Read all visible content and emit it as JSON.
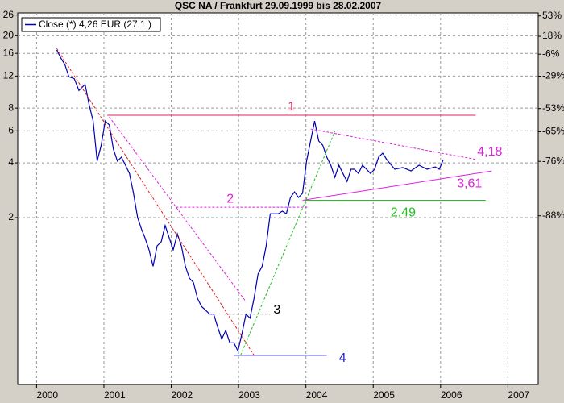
{
  "chart_data": {
    "type": "line",
    "title": "QSC NA / Frankfurt 29.09.1999  bis 28.02.2007",
    "log_scale": true,
    "y2_log": true,
    "grid": true,
    "legend": "top-left",
    "xlim": [
      1999.72,
      2007.45
    ],
    "xticks": [
      2000,
      2001,
      2002,
      2003,
      2004,
      2005,
      2006,
      2007
    ],
    "ylim": [
      0.242,
      26.7
    ],
    "yticks": [
      2,
      4,
      6,
      8,
      12,
      16,
      20,
      26
    ],
    "y2lim": [
      -98.6,
      59
    ],
    "y2ticks": [
      {
        "value": 53,
        "label": "53%"
      },
      {
        "value": 18,
        "label": "18%"
      },
      {
        "value": -6,
        "label": "-6%"
      },
      {
        "value": -29,
        "label": "-29%"
      },
      {
        "value": -53,
        "label": "-53%"
      },
      {
        "value": -65,
        "label": "-65%"
      },
      {
        "value": -76,
        "label": "-76%"
      },
      {
        "value": -88,
        "label": "-88%"
      }
    ],
    "x": [
      2000.3,
      2000.36,
      2000.42,
      2000.48,
      2000.56,
      2000.63,
      2000.72,
      2000.78,
      2000.84,
      2000.9,
      2000.96,
      2001.02,
      2001.08,
      2001.14,
      2001.2,
      2001.26,
      2001.32,
      2001.38,
      2001.44,
      2001.5,
      2001.56,
      2001.61,
      2001.67,
      2001.73,
      2001.79,
      2001.85,
      2001.91,
      2001.97,
      2002.03,
      2002.09,
      2002.15,
      2002.21,
      2002.27,
      2002.33,
      2002.39,
      2002.45,
      2002.51,
      2002.57,
      2002.63,
      2002.69,
      2002.75,
      2002.81,
      2002.87,
      2002.93,
      2002.99,
      2003.05,
      2003.11,
      2003.17,
      2003.23,
      2003.29,
      2003.35,
      2003.41,
      2003.47,
      2003.53,
      2003.59,
      2003.65,
      2003.71,
      2003.77,
      2003.83,
      2003.89,
      2003.95,
      2004.01,
      2004.07,
      2004.13,
      2004.19,
      2004.25,
      2004.31,
      2004.37,
      2004.43,
      2004.49,
      2004.55,
      2004.61,
      2004.67,
      2004.72,
      2004.78,
      2004.84,
      2004.9,
      2004.96,
      2005.02,
      2005.08,
      2005.14,
      2005.2,
      2005.32,
      2005.44,
      2005.56,
      2005.68,
      2005.8,
      2005.92,
      2005.98,
      2006.04
    ],
    "series": [
      {
        "name": "Close (*) 4,26 EUR (27.1.)",
        "color": "#0000b0",
        "values": [
          16.7,
          15.1,
          13.9,
          11.9,
          11.6,
          10.0,
          10.8,
          8.35,
          6.8,
          4.09,
          5.0,
          6.8,
          6.46,
          4.76,
          4.09,
          4.3,
          3.88,
          3.5,
          2.72,
          2.0,
          1.72,
          1.55,
          1.33,
          1.08,
          1.4,
          1.47,
          1.81,
          1.55,
          1.33,
          1.63,
          1.4,
          1.08,
          0.93,
          0.88,
          0.72,
          0.65,
          0.62,
          0.59,
          0.59,
          0.5,
          0.43,
          0.48,
          0.41,
          0.41,
          0.37,
          0.46,
          0.59,
          0.56,
          0.72,
          0.98,
          1.08,
          1.4,
          2.1,
          2.1,
          2.1,
          2.17,
          2.1,
          2.58,
          2.77,
          2.58,
          2.72,
          4.09,
          5.27,
          6.8,
          5.27,
          5.0,
          4.3,
          3.88,
          3.33,
          3.88,
          3.5,
          3.16,
          3.69,
          3.69,
          3.5,
          3.88,
          3.69,
          3.5,
          3.69,
          4.3,
          4.52,
          4.17,
          3.69,
          3.77,
          3.61,
          3.88,
          3.69,
          3.8,
          3.69,
          4.17
        ]
      }
    ],
    "lines": [
      {
        "label": "1",
        "x1": 2001.05,
        "x2": 2006.52,
        "y1": 7.31,
        "y2": 7.31,
        "color": "#e0205a",
        "dashed": false
      },
      {
        "label": "2",
        "x1": 2002.07,
        "x2": 2004.04,
        "y1": 2.28,
        "y2": 2.28,
        "color": "#e020e0",
        "dashed": true
      },
      {
        "label": "3",
        "x1": 2002.79,
        "x2": 2003.47,
        "y1": 0.59,
        "y2": 0.59,
        "color": "#000000",
        "dashed": true
      },
      {
        "label": "4",
        "x1": 2002.93,
        "x2": 2004.31,
        "y1": 0.35,
        "y2": 0.35,
        "color": "#2020c0",
        "dashed": false
      },
      {
        "label": "2,49",
        "x1": 2003.98,
        "x2": 2006.67,
        "y1": 2.49,
        "y2": 2.49,
        "color": "#20c020",
        "dashed": false
      },
      {
        "label": "3,61",
        "x1": 2003.95,
        "x2": 2006.76,
        "y1": 2.49,
        "y2": 3.61,
        "color": "#e020e0",
        "dashed": false
      },
      {
        "label": "4,18",
        "x1": 2004.07,
        "x2": 2006.52,
        "y1": 6.14,
        "y2": 4.18,
        "color": "#e020e0",
        "dashed": true
      },
      {
        "x1": 2000.3,
        "x2": 2003.23,
        "y1": 17.0,
        "y2": 0.35,
        "color": "#e02020",
        "dashed": true
      },
      {
        "x1": 2001.08,
        "x2": 2003.11,
        "y1": 7.16,
        "y2": 0.69,
        "color": "#e020e0",
        "dashed": true
      },
      {
        "x1": 2003.03,
        "x2": 2004.43,
        "y1": 0.35,
        "y2": 5.96,
        "color": "#20c020",
        "dashed": true
      }
    ]
  }
}
